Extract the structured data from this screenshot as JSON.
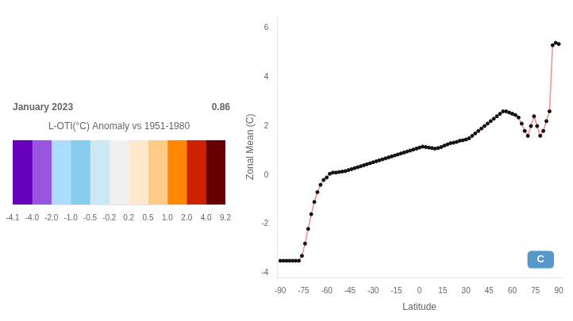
{
  "chart_data": [
    {
      "type": "colorbar",
      "title": "January 2023",
      "subtitle": "L-OTI(°C) Anomaly vs 1951-1980",
      "annotations": [
        "0.86"
      ],
      "colors": [
        "#6600bb",
        "#9955dd",
        "#aaddff",
        "#88ccee",
        "#cce8f4",
        "#f0f0f0",
        "#ffe8cc",
        "#ffcc88",
        "#ff8800",
        "#cc2200",
        "#660000"
      ],
      "ticks": [
        -4.1,
        {
          "value": -4,
          "label": "-4.0"
        },
        {
          "value": -2,
          "label": "-2.0"
        },
        {
          "value": -1,
          "label": "-1.0"
        },
        -0.5,
        -0.2,
        0.2,
        0.5,
        {
          "value": 1,
          "label": "1.0"
        },
        {
          "value": 2,
          "label": "2.0"
        },
        {
          "value": 4,
          "label": "4.0"
        },
        9.2
      ]
    },
    {
      "type": "line",
      "x_label": "Latitude",
      "y_label": "Zonal Mean (C)",
      "annotations": [
        "C"
      ],
      "grid": false,
      "xlim": [
        -92,
        92
      ],
      "ylim": [
        -4.2,
        6.5
      ],
      "xticks": [
        -90,
        -75,
        -60,
        -45,
        -30,
        -15,
        0,
        15,
        30,
        45,
        60,
        75,
        90
      ],
      "yticks": [
        -4,
        -2,
        0,
        2,
        4,
        6
      ],
      "x": [
        -90,
        -88,
        -86,
        -84,
        -82,
        -80,
        -78,
        -76,
        -74,
        -72,
        -70,
        -68,
        -66,
        -64,
        -62,
        -60,
        -58,
        -56,
        -54,
        -52,
        -50,
        -48,
        -46,
        -44,
        -42,
        -40,
        -38,
        -36,
        -34,
        -32,
        -30,
        -28,
        -26,
        -24,
        -22,
        -20,
        -18,
        -16,
        -14,
        -12,
        -10,
        -8,
        -6,
        -4,
        -2,
        0,
        2,
        4,
        6,
        8,
        10,
        12,
        14,
        16,
        18,
        20,
        22,
        24,
        26,
        28,
        30,
        32,
        34,
        36,
        38,
        40,
        42,
        44,
        46,
        48,
        50,
        52,
        54,
        56,
        58,
        60,
        62,
        64,
        66,
        68,
        70,
        72,
        74,
        76,
        78,
        80,
        82,
        84,
        86,
        88,
        90
      ],
      "series": [
        {
          "type": "line",
          "color": "#ff8888",
          "values": [
            -3.5,
            -3.5,
            -3.5,
            -3.5,
            -3.5,
            -3.5,
            -3.5,
            -3.3,
            -2.8,
            -2.2,
            -1.6,
            -1.1,
            -0.7,
            -0.4,
            -0.2,
            -0.1,
            0.05,
            0.1,
            0.1,
            0.12,
            0.14,
            0.16,
            0.2,
            0.24,
            0.28,
            0.32,
            0.36,
            0.4,
            0.44,
            0.48,
            0.52,
            0.56,
            0.6,
            0.64,
            0.68,
            0.72,
            0.76,
            0.8,
            0.84,
            0.88,
            0.92,
            0.96,
            1.0,
            1.04,
            1.08,
            1.12,
            1.16,
            1.14,
            1.12,
            1.1,
            1.08,
            1.1,
            1.14,
            1.2,
            1.25,
            1.3,
            1.32,
            1.35,
            1.4,
            1.42,
            1.45,
            1.5,
            1.6,
            1.7,
            1.8,
            1.9,
            2.0,
            2.1,
            2.2,
            2.3,
            2.4,
            2.5,
            2.6,
            2.6,
            2.55,
            2.5,
            2.45,
            2.35,
            2.1,
            1.8,
            1.6,
            2.0,
            2.4,
            2.0,
            1.6,
            1.8,
            2.2,
            2.6,
            5.3,
            5.4,
            5.35
          ]
        },
        {
          "type": "scatter",
          "color": "#111111",
          "marker": "circle",
          "values": [
            -3.5,
            -3.5,
            -3.5,
            -3.5,
            -3.5,
            -3.5,
            -3.5,
            -3.3,
            -2.8,
            -2.2,
            -1.6,
            -1.1,
            -0.7,
            -0.4,
            -0.2,
            -0.1,
            0.05,
            0.1,
            0.1,
            0.12,
            0.14,
            0.16,
            0.2,
            0.24,
            0.28,
            0.32,
            0.36,
            0.4,
            0.44,
            0.48,
            0.52,
            0.56,
            0.6,
            0.64,
            0.68,
            0.72,
            0.76,
            0.8,
            0.84,
            0.88,
            0.92,
            0.96,
            1.0,
            1.04,
            1.08,
            1.12,
            1.16,
            1.14,
            1.12,
            1.1,
            1.08,
            1.1,
            1.14,
            1.2,
            1.25,
            1.3,
            1.32,
            1.35,
            1.4,
            1.42,
            1.45,
            1.5,
            1.6,
            1.7,
            1.8,
            1.9,
            2.0,
            2.1,
            2.2,
            2.3,
            2.4,
            2.5,
            2.6,
            2.6,
            2.55,
            2.5,
            2.45,
            2.35,
            2.1,
            1.8,
            1.6,
            2.0,
            2.4,
            2.0,
            1.6,
            1.8,
            2.2,
            2.6,
            5.3,
            5.4,
            5.35
          ]
        }
      ]
    }
  ]
}
